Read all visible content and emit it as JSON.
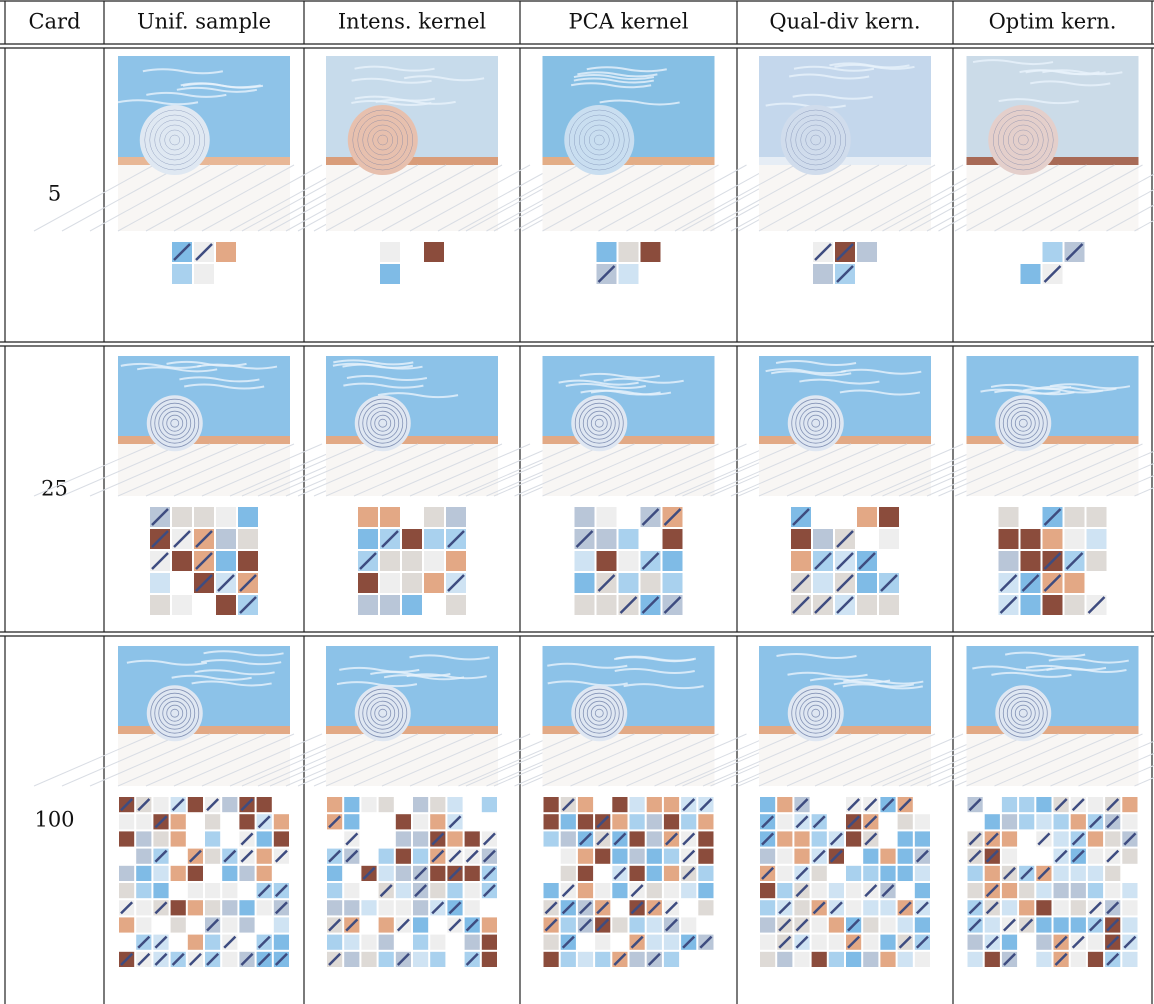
{
  "table": {
    "header": [
      "Card",
      "Unif. sample",
      "Intens. kernel",
      "PCA kernel",
      "Qual-div kern.",
      "Optim kern."
    ],
    "rows": [
      {
        "card": 5
      },
      {
        "card": 25
      },
      {
        "card": 100
      }
    ]
  }
}
